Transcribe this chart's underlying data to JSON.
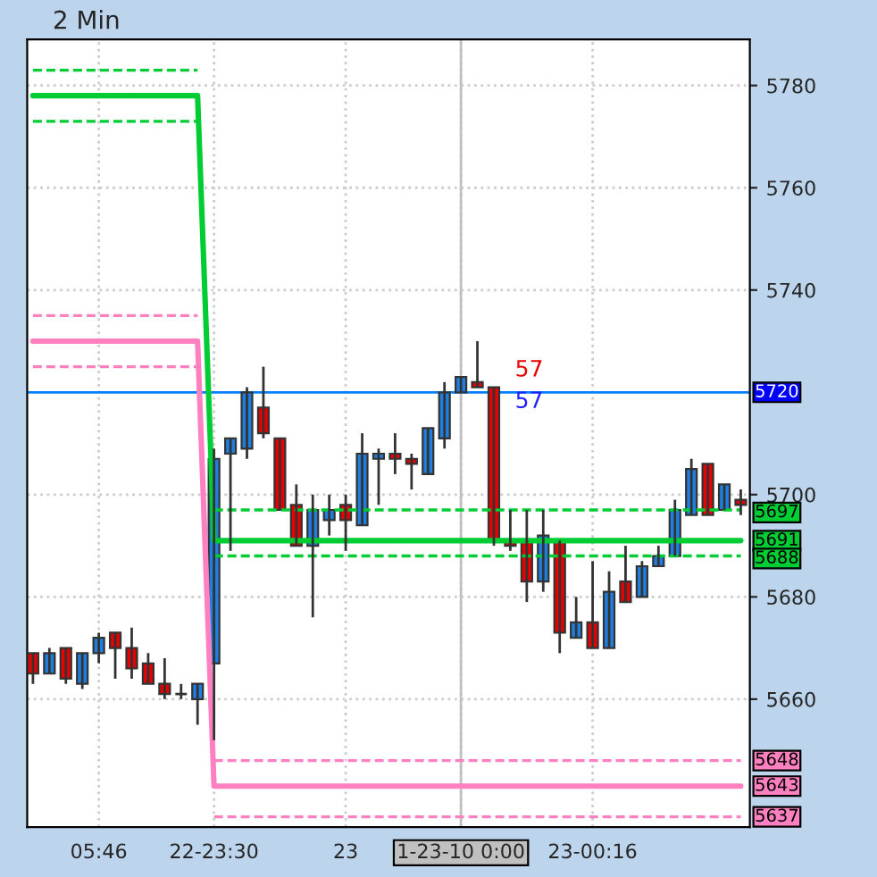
{
  "chart_data": {
    "type": "candlestick",
    "title": "2 Min",
    "categories": [
      null,
      null,
      null,
      null,
      "05:46",
      null,
      null,
      null,
      null,
      null,
      null,
      "22-23:30",
      null,
      null,
      null,
      null,
      null,
      null,
      null,
      "23",
      null,
      null,
      null,
      null,
      null,
      null,
      "1-23-10 0:00",
      null,
      null,
      null,
      null,
      null,
      null,
      null,
      "23-00:16",
      null,
      null,
      null,
      null,
      null,
      null,
      null,
      null,
      null
    ],
    "ohlc": [
      [
        5669,
        5669,
        5663,
        5665
      ],
      [
        5665,
        5670,
        5665,
        5669
      ],
      [
        5670,
        5670,
        5663,
        5664
      ],
      [
        5663,
        5669,
        5662,
        5669
      ],
      [
        5669,
        5673,
        5667,
        5672
      ],
      [
        5673,
        5673,
        5664,
        5670
      ],
      [
        5670,
        5674,
        5664,
        5666
      ],
      [
        5667,
        5669,
        5663,
        5663
      ],
      [
        5663,
        5668,
        5660,
        5661
      ],
      [
        5661,
        5663,
        5660,
        5661
      ],
      [
        5660,
        5663,
        5655,
        5663
      ],
      [
        5667,
        5709,
        5652,
        5707
      ],
      [
        5708,
        5711,
        5689,
        5711
      ],
      [
        5709,
        5721,
        5707,
        5720
      ],
      [
        5717,
        5725,
        5711,
        5712
      ],
      [
        5711,
        5711,
        5697,
        5697
      ],
      [
        5698,
        5702,
        5690,
        5690
      ],
      [
        5690,
        5700,
        5676,
        5697
      ],
      [
        5695,
        5700,
        5692,
        5697
      ],
      [
        5698,
        5700,
        5689,
        5695
      ],
      [
        5694,
        5712,
        5694,
        5708
      ],
      [
        5707,
        5709,
        5698,
        5708
      ],
      [
        5708,
        5712,
        5704,
        5707
      ],
      [
        5707,
        5708,
        5701,
        5706
      ],
      [
        5704,
        5713,
        5704,
        5713
      ],
      [
        5711,
        5722,
        5709,
        5720
      ],
      [
        5720,
        5723,
        5720,
        5723
      ],
      [
        5722,
        5730,
        5721,
        5721
      ],
      [
        5721,
        5721,
        5690,
        5691
      ],
      [
        5691,
        5697,
        5689,
        5690
      ],
      [
        5691,
        5697,
        5679,
        5683
      ],
      [
        5683,
        5697,
        5681,
        5692
      ],
      [
        5691,
        5691,
        5669,
        5673
      ],
      [
        5672,
        5680,
        5672,
        5675
      ],
      [
        5675,
        5687,
        5670,
        5670
      ],
      [
        5670,
        5685,
        5670,
        5681
      ],
      [
        5683,
        5690,
        5679,
        5679
      ],
      [
        5680,
        5687,
        5680,
        5686
      ],
      [
        5686,
        5690,
        5686,
        5688
      ],
      [
        5688,
        5699,
        5688,
        5697
      ],
      [
        5696,
        5707,
        5696,
        5705
      ],
      [
        5706,
        5706,
        5696,
        5696
      ],
      [
        5697,
        5702,
        5697,
        5702
      ],
      [
        5699,
        5701,
        5696,
        5698
      ]
    ],
    "series": [
      {
        "type": "line",
        "color": "#00cc33",
        "line_style": "dashed",
        "values": [
          5783,
          5783,
          5783,
          5783,
          5783,
          5783,
          5783,
          5783,
          5783,
          5783,
          5783,
          null,
          null,
          null,
          null,
          null,
          null,
          null,
          null,
          null,
          null,
          null,
          null,
          null,
          null,
          null,
          null,
          null,
          null,
          null,
          null,
          null,
          null,
          null,
          null,
          null,
          null,
          null,
          null,
          null,
          null,
          null,
          null,
          null
        ]
      },
      {
        "type": "line",
        "color": "#00cc33",
        "line_style": "dashed",
        "values": [
          null,
          null,
          null,
          null,
          null,
          null,
          null,
          null,
          null,
          null,
          null,
          5697,
          5697,
          5697,
          5697,
          5697,
          5697,
          5697,
          5697,
          5697,
          5697,
          5697,
          5697,
          5697,
          5697,
          5697,
          5697,
          5697,
          5697,
          5697,
          5697,
          5697,
          5697,
          5697,
          5697,
          5697,
          5697,
          5697,
          5697,
          5697,
          5697,
          5697,
          5697,
          5697
        ],
        "value_labels": [
          null,
          null,
          null,
          null,
          null,
          null,
          null,
          null,
          null,
          null,
          null,
          null,
          null,
          null,
          null,
          null,
          null,
          null,
          null,
          null,
          null,
          null,
          null,
          null,
          null,
          null,
          null,
          null,
          null,
          null,
          null,
          null,
          null,
          null,
          null,
          null,
          null,
          null,
          null,
          null,
          null,
          null,
          null,
          "5697"
        ]
      },
      {
        "type": "line",
        "color": "#00cc33",
        "line_style": "solid",
        "values": [
          5778,
          5778,
          5778,
          5778,
          5778,
          5778,
          5778,
          5778,
          5778,
          5778,
          5778,
          5691,
          5691,
          5691,
          5691,
          5691,
          5691,
          5691,
          5691,
          5691,
          5691,
          5691,
          5691,
          5691,
          5691,
          5691,
          5691,
          5691,
          5691,
          5691,
          5691,
          5691,
          5691,
          5691,
          5691,
          5691,
          5691,
          5691,
          5691,
          5691,
          5691,
          5691,
          5691,
          5691
        ],
        "value_labels": [
          null,
          null,
          null,
          null,
          null,
          null,
          null,
          null,
          null,
          null,
          null,
          null,
          null,
          null,
          null,
          null,
          null,
          null,
          null,
          null,
          null,
          null,
          null,
          null,
          null,
          null,
          null,
          null,
          null,
          null,
          null,
          null,
          null,
          null,
          null,
          null,
          null,
          null,
          null,
          null,
          null,
          null,
          null,
          "5691"
        ]
      },
      {
        "type": "line",
        "color": "#00cc33",
        "line_style": "dashed",
        "values": [
          5773,
          5773,
          5773,
          5773,
          5773,
          5773,
          5773,
          5773,
          5773,
          5773,
          5773,
          null,
          null,
          null,
          null,
          null,
          null,
          null,
          null,
          null,
          null,
          null,
          null,
          null,
          null,
          null,
          null,
          null,
          null,
          null,
          null,
          null,
          null,
          null,
          null,
          null,
          null,
          null,
          null,
          null,
          null,
          null,
          null,
          null
        ]
      },
      {
        "type": "line",
        "color": "#00cc33",
        "line_style": "dashed",
        "values": [
          null,
          null,
          null,
          null,
          null,
          null,
          null,
          null,
          null,
          null,
          null,
          5688,
          5688,
          5688,
          5688,
          5688,
          5688,
          5688,
          5688,
          5688,
          5688,
          5688,
          5688,
          5688,
          5688,
          5688,
          5688,
          5688,
          5688,
          5688,
          5688,
          5688,
          5688,
          5688,
          5688,
          5688,
          5688,
          5688,
          5688,
          5688,
          5688,
          5688,
          5688,
          5688
        ],
        "value_labels": [
          null,
          null,
          null,
          null,
          null,
          null,
          null,
          null,
          null,
          null,
          null,
          null,
          null,
          null,
          null,
          null,
          null,
          null,
          null,
          null,
          null,
          null,
          null,
          null,
          null,
          null,
          null,
          null,
          null,
          null,
          null,
          null,
          null,
          null,
          null,
          null,
          null,
          null,
          null,
          null,
          null,
          null,
          null,
          "5688"
        ]
      },
      {
        "type": "line",
        "color": "#ff80c0",
        "line_style": "dashed",
        "values": [
          5735,
          5735,
          5735,
          5735,
          5735,
          5735,
          5735,
          5735,
          5735,
          5735,
          5735,
          null,
          null,
          null,
          null,
          null,
          null,
          null,
          null,
          null,
          null,
          null,
          null,
          null,
          null,
          null,
          null,
          null,
          null,
          null,
          null,
          null,
          null,
          null,
          null,
          null,
          null,
          null,
          null,
          null,
          null,
          null,
          null,
          null
        ]
      },
      {
        "type": "line",
        "color": "#ff80c0",
        "line_style": "dashed",
        "values": [
          null,
          null,
          null,
          null,
          null,
          null,
          null,
          null,
          null,
          null,
          null,
          5648,
          5648,
          5648,
          5648,
          5648,
          5648,
          5648,
          5648,
          5648,
          5648,
          5648,
          5648,
          5648,
          5648,
          5648,
          5648,
          5648,
          5648,
          5648,
          5648,
          5648,
          5648,
          5648,
          5648,
          5648,
          5648,
          5648,
          5648,
          5648,
          5648,
          5648,
          5648,
          5648
        ],
        "value_labels": [
          null,
          null,
          null,
          null,
          null,
          null,
          null,
          null,
          null,
          null,
          null,
          null,
          null,
          null,
          null,
          null,
          null,
          null,
          null,
          null,
          null,
          null,
          null,
          null,
          null,
          null,
          null,
          null,
          null,
          null,
          null,
          null,
          null,
          null,
          null,
          null,
          null,
          null,
          null,
          null,
          null,
          null,
          null,
          "5648"
        ]
      },
      {
        "type": "line",
        "color": "#ff80c0",
        "line_style": "solid",
        "values": [
          5730,
          5730,
          5730,
          5730,
          5730,
          5730,
          5730,
          5730,
          5730,
          5730,
          5730,
          5643,
          5643,
          5643,
          5643,
          5643,
          5643,
          5643,
          5643,
          5643,
          5643,
          5643,
          5643,
          5643,
          5643,
          5643,
          5643,
          5643,
          5643,
          5643,
          5643,
          5643,
          5643,
          5643,
          5643,
          5643,
          5643,
          5643,
          5643,
          5643,
          5643,
          5643,
          5643,
          5643
        ],
        "value_labels": [
          null,
          null,
          null,
          null,
          null,
          null,
          null,
          null,
          null,
          null,
          null,
          null,
          null,
          null,
          null,
          null,
          null,
          null,
          null,
          null,
          null,
          null,
          null,
          null,
          null,
          null,
          null,
          null,
          null,
          null,
          null,
          null,
          null,
          null,
          null,
          null,
          null,
          null,
          null,
          null,
          null,
          null,
          null,
          "5643"
        ]
      },
      {
        "type": "line",
        "color": "#ff80c0",
        "line_style": "dashed",
        "values": [
          5725,
          5725,
          5725,
          5725,
          5725,
          5725,
          5725,
          5725,
          5725,
          5725,
          5725,
          null,
          null,
          null,
          null,
          null,
          null,
          null,
          null,
          null,
          null,
          null,
          null,
          null,
          null,
          null,
          null,
          null,
          null,
          null,
          null,
          null,
          null,
          null,
          null,
          null,
          null,
          null,
          null,
          null,
          null,
          null,
          null,
          null
        ]
      },
      {
        "type": "line",
        "color": "#ff80c0",
        "line_style": "dashed",
        "values": [
          null,
          null,
          null,
          null,
          null,
          null,
          null,
          null,
          null,
          null,
          null,
          5637,
          5637,
          5637,
          5637,
          5637,
          5637,
          5637,
          5637,
          5637,
          5637,
          5637,
          5637,
          5637,
          5637,
          5637,
          5637,
          5637,
          5637,
          5637,
          5637,
          5637,
          5637,
          5637,
          5637,
          5637,
          5637,
          5637,
          5637,
          5637,
          5637,
          5637,
          5637,
          5637
        ],
        "value_labels": [
          null,
          null,
          null,
          null,
          null,
          null,
          null,
          null,
          null,
          null,
          null,
          null,
          null,
          null,
          null,
          null,
          null,
          null,
          null,
          null,
          null,
          null,
          null,
          null,
          null,
          null,
          null,
          null,
          null,
          null,
          null,
          null,
          null,
          null,
          null,
          null,
          null,
          null,
          null,
          null,
          null,
          null,
          null,
          "5637"
        ]
      }
    ],
    "ref_lines": [
      {
        "axis": "y",
        "value": 5720,
        "label": "5720",
        "color": "#0080ff"
      },
      {
        "axis": "x",
        "value": "1-23-10 0:00",
        "color": "#c0c0c0"
      }
    ],
    "annotations": [
      "57",
      "57"
    ],
    "ylim": [
      5635,
      5789
    ],
    "yticks": [
      5660,
      5680,
      5700,
      5740,
      5760,
      5780
    ],
    "grid": true
  }
}
